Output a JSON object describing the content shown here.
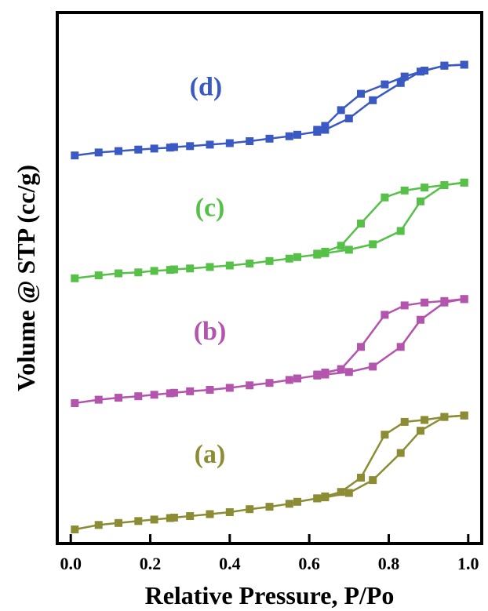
{
  "chart_data": {
    "type": "scatter",
    "title": "",
    "xlabel": "Relative Pressure, P/Po",
    "ylabel": "Volume @ STP (cc/g)",
    "xlim": [
      -0.03,
      1.03
    ],
    "ylim": [
      0,
      100
    ],
    "xticks": [
      0.0,
      0.2,
      0.4,
      0.6,
      0.8,
      1.0
    ],
    "xtick_labels": [
      "0.0",
      "0.2",
      "0.4",
      "0.6",
      "0.8",
      "1.0"
    ],
    "yticks_shown": false,
    "grid": false,
    "legend": "none",
    "series": [
      {
        "label": "(a)",
        "color": "#8c8c35",
        "label_pos": [
          0.35,
          13.5
        ],
        "adsorption": {
          "x": [
            0.01,
            0.07,
            0.12,
            0.17,
            0.21,
            0.25,
            0.26,
            0.3,
            0.35,
            0.4,
            0.45,
            0.5,
            0.55,
            0.57,
            0.62,
            0.64,
            0.7,
            0.76,
            0.83,
            0.88,
            0.94,
            0.99
          ],
          "y": [
            0.0,
            0.9,
            1.3,
            1.7,
            2.0,
            2.3,
            2.4,
            2.7,
            3.1,
            3.5,
            4.1,
            4.6,
            5.2,
            5.6,
            6.3,
            6.5,
            7.4,
            10.0,
            15.5,
            20.0,
            22.8,
            23.1
          ]
        },
        "desorption": {
          "x": [
            0.99,
            0.94,
            0.89,
            0.84,
            0.79,
            0.73,
            0.68,
            0.64,
            0.62
          ],
          "y": [
            23.1,
            22.8,
            22.2,
            21.8,
            19.2,
            10.5,
            7.6,
            6.7,
            6.3
          ]
        }
      },
      {
        "label": "(b)",
        "color": "#b455ad",
        "label_pos": [
          0.35,
          38.5
        ],
        "adsorption": {
          "x": [
            0.01,
            0.07,
            0.12,
            0.17,
            0.21,
            0.25,
            0.26,
            0.3,
            0.35,
            0.4,
            0.45,
            0.5,
            0.55,
            0.57,
            0.62,
            0.64,
            0.7,
            0.76,
            0.83,
            0.88,
            0.94,
            0.99
          ],
          "y": [
            25.6,
            26.3,
            26.7,
            27.0,
            27.3,
            27.6,
            27.7,
            28.0,
            28.3,
            28.7,
            29.2,
            29.7,
            30.3,
            30.6,
            31.2,
            31.4,
            31.9,
            33.0,
            37.0,
            42.5,
            46.0,
            46.7
          ]
        },
        "desorption": {
          "x": [
            0.99,
            0.94,
            0.89,
            0.84,
            0.79,
            0.73,
            0.68,
            0.64,
            0.62
          ],
          "y": [
            46.7,
            46.3,
            46.0,
            45.4,
            43.5,
            37.0,
            32.5,
            31.8,
            31.4
          ]
        }
      },
      {
        "label": "(c)",
        "color": "#57c048",
        "label_pos": [
          0.35,
          63.5
        ],
        "adsorption": {
          "x": [
            0.01,
            0.07,
            0.12,
            0.17,
            0.21,
            0.25,
            0.26,
            0.3,
            0.35,
            0.4,
            0.45,
            0.5,
            0.55,
            0.57,
            0.62,
            0.64,
            0.7,
            0.76,
            0.83,
            0.88,
            0.94,
            0.99
          ],
          "y": [
            50.9,
            51.5,
            51.9,
            52.1,
            52.4,
            52.6,
            52.7,
            52.9,
            53.2,
            53.5,
            53.9,
            54.4,
            54.9,
            55.2,
            55.7,
            56.0,
            56.7,
            57.8,
            60.5,
            66.5,
            69.8,
            70.3
          ]
        },
        "desorption": {
          "x": [
            0.99,
            0.94,
            0.89,
            0.84,
            0.79,
            0.73,
            0.68,
            0.64,
            0.62
          ],
          "y": [
            70.3,
            69.8,
            69.3,
            68.7,
            67.3,
            62.0,
            57.5,
            56.3,
            55.9
          ]
        }
      },
      {
        "label": "(d)",
        "color": "#3a59c2",
        "label_pos": [
          0.34,
          88.0
        ],
        "adsorption": {
          "x": [
            0.01,
            0.07,
            0.12,
            0.17,
            0.21,
            0.25,
            0.26,
            0.3,
            0.35,
            0.4,
            0.45,
            0.5,
            0.55,
            0.57,
            0.62,
            0.64,
            0.7,
            0.76,
            0.83,
            0.88,
            0.94,
            0.99
          ],
          "y": [
            75.8,
            76.4,
            76.7,
            77.0,
            77.2,
            77.4,
            77.5,
            77.7,
            78.0,
            78.3,
            78.7,
            79.2,
            79.7,
            80.0,
            80.6,
            81.0,
            83.3,
            87.0,
            90.5,
            92.8,
            94.0,
            94.2
          ]
        },
        "desorption": {
          "x": [
            0.99,
            0.94,
            0.89,
            0.84,
            0.79,
            0.73,
            0.68,
            0.64,
            0.62
          ],
          "y": [
            94.2,
            94.0,
            93.0,
            91.8,
            90.2,
            88.3,
            85.0,
            81.8,
            81.0
          ]
        }
      }
    ]
  }
}
